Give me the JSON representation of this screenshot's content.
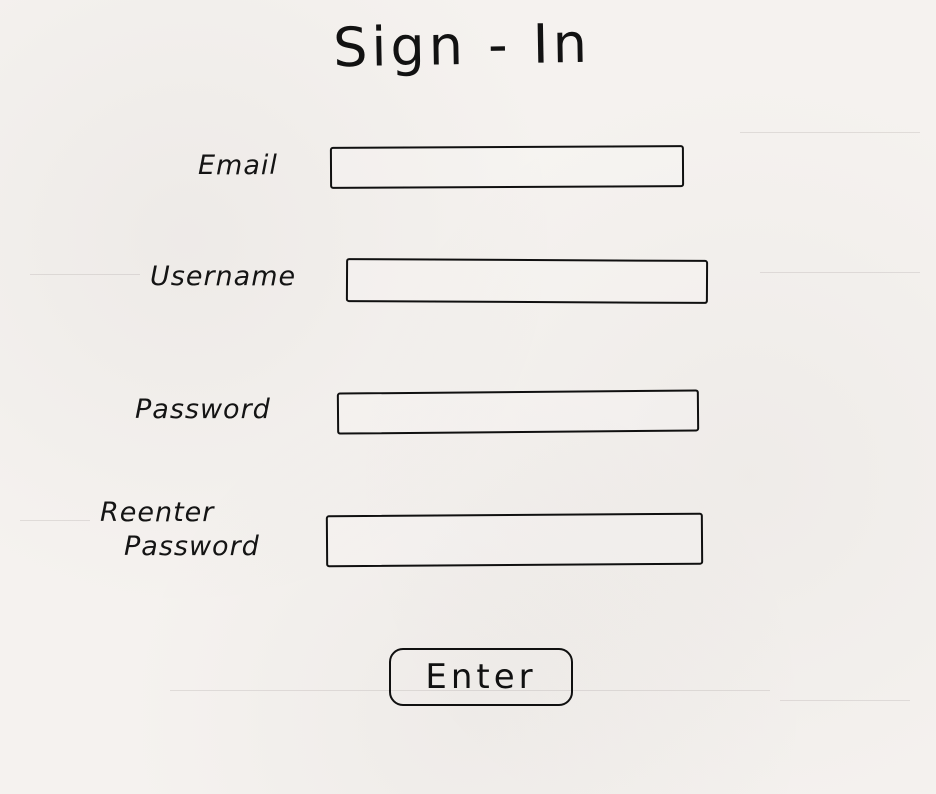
{
  "page": {
    "title": "Sign - In"
  },
  "form": {
    "email": {
      "label": "Email",
      "value": "",
      "placeholder": ""
    },
    "username": {
      "label": "Username",
      "value": "",
      "placeholder": ""
    },
    "password": {
      "label": "Password",
      "value": "",
      "placeholder": ""
    },
    "reenter_password": {
      "label_line1": "Reenter",
      "label_line2": "Password",
      "value": "",
      "placeholder": ""
    },
    "submit_label": "Enter"
  },
  "colors": {
    "ink": "#111111",
    "paper": "#f5f2ef"
  }
}
